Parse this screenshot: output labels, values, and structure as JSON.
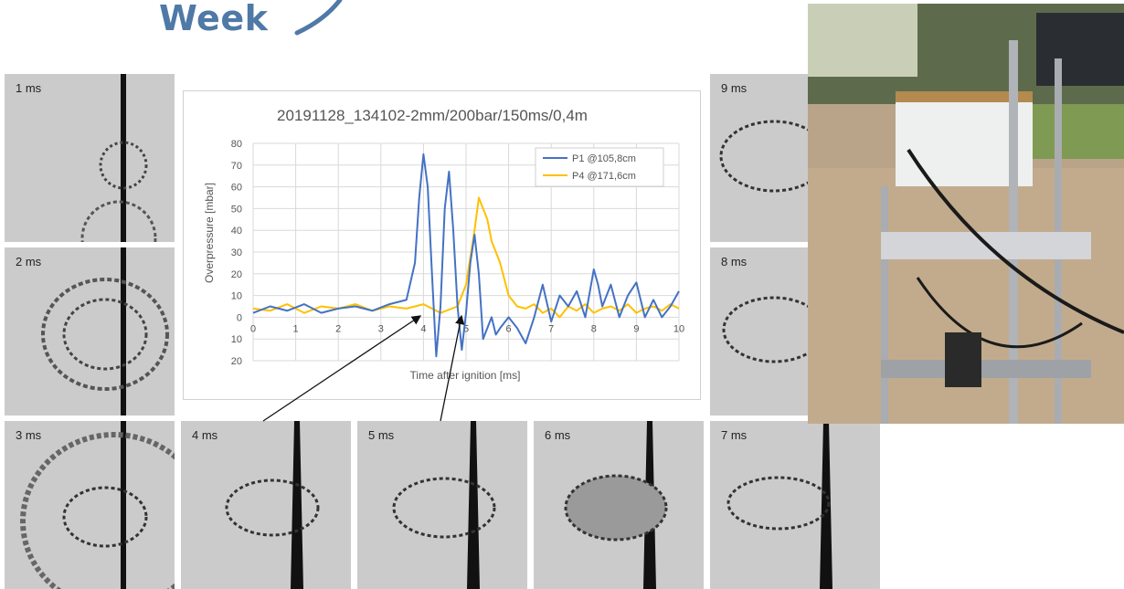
{
  "logo": {
    "text": "Week"
  },
  "panels": [
    {
      "id": "p1",
      "label": "1 ms"
    },
    {
      "id": "p2",
      "label": "2 ms"
    },
    {
      "id": "p3",
      "label": "3 ms"
    },
    {
      "id": "p4",
      "label": "4 ms"
    },
    {
      "id": "p5",
      "label": "5 ms"
    },
    {
      "id": "p6",
      "label": "6 ms"
    },
    {
      "id": "p7",
      "label": "7 ms"
    },
    {
      "id": "p8",
      "label": "8 ms"
    },
    {
      "id": "p9",
      "label": "9 ms"
    }
  ],
  "colors": {
    "p1": "#4472c4",
    "p4": "#ffc000"
  },
  "chart_data": {
    "type": "line",
    "title": "20191128_134102-2mm/200bar/150ms/0,4m",
    "xlabel": "Time after ignition [ms]",
    "ylabel": "Overpressure [mbar]",
    "xlim": [
      0,
      10
    ],
    "ylim": [
      -20,
      80
    ],
    "xticks": [
      0,
      1,
      2,
      3,
      4,
      5,
      6,
      7,
      8,
      9,
      10
    ],
    "yticks": [
      -20,
      -10,
      0,
      10,
      20,
      30,
      40,
      50,
      60,
      70,
      80
    ],
    "ytick_labels": [
      "20",
      "10",
      "0",
      "10",
      "20",
      "30",
      "40",
      "50",
      "60",
      "70",
      "80"
    ],
    "grid": true,
    "legend_position": "top-right",
    "series": [
      {
        "name": "P1 @105,8cm",
        "color": "#4472c4",
        "x": [
          0,
          0.4,
          0.8,
          1.2,
          1.6,
          2.0,
          2.4,
          2.8,
          3.2,
          3.6,
          3.8,
          3.9,
          4.0,
          4.1,
          4.2,
          4.3,
          4.4,
          4.5,
          4.6,
          4.7,
          4.8,
          4.9,
          5.0,
          5.1,
          5.2,
          5.3,
          5.4,
          5.5,
          5.6,
          5.7,
          5.8,
          6.0,
          6.2,
          6.4,
          6.6,
          6.8,
          7.0,
          7.2,
          7.4,
          7.6,
          7.8,
          8.0,
          8.1,
          8.2,
          8.4,
          8.6,
          8.8,
          9.0,
          9.2,
          9.4,
          9.6,
          9.8,
          10.0
        ],
        "y": [
          2,
          5,
          3,
          6,
          2,
          4,
          5,
          3,
          6,
          8,
          25,
          55,
          75,
          60,
          20,
          -18,
          5,
          50,
          67,
          40,
          5,
          -15,
          2,
          25,
          38,
          20,
          -10,
          -5,
          0,
          -8,
          -5,
          0,
          -5,
          -12,
          0,
          15,
          -2,
          10,
          5,
          12,
          0,
          22,
          15,
          5,
          15,
          0,
          10,
          16,
          0,
          8,
          0,
          5,
          12
        ]
      },
      {
        "name": "P4 @171,6cm",
        "color": "#ffc000",
        "x": [
          0,
          0.4,
          0.8,
          1.2,
          1.6,
          2.0,
          2.4,
          2.8,
          3.2,
          3.6,
          4.0,
          4.4,
          4.8,
          5.0,
          5.2,
          5.3,
          5.4,
          5.5,
          5.6,
          5.8,
          6.0,
          6.2,
          6.4,
          6.6,
          6.8,
          7.0,
          7.2,
          7.4,
          7.6,
          7.8,
          8.0,
          8.2,
          8.4,
          8.6,
          8.8,
          9.0,
          9.2,
          9.4,
          9.6,
          9.8,
          10.0
        ],
        "y": [
          4,
          3,
          6,
          2,
          5,
          4,
          6,
          3,
          5,
          4,
          6,
          2,
          5,
          15,
          40,
          55,
          50,
          45,
          35,
          25,
          10,
          5,
          4,
          6,
          2,
          4,
          0,
          5,
          3,
          6,
          2,
          4,
          5,
          3,
          6,
          2,
          4,
          5,
          3,
          6,
          4
        ]
      }
    ]
  }
}
